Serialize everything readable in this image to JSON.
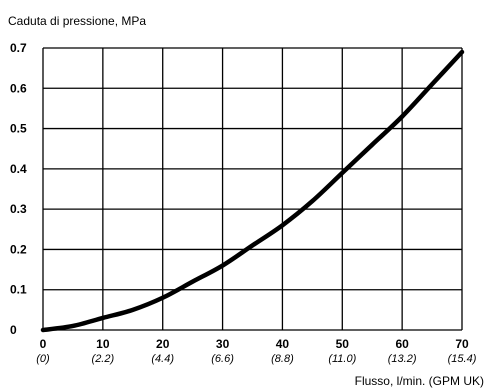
{
  "chart_data": {
    "type": "line",
    "ylabel": "Caduta di pressione, MPa",
    "xlabel": "Flusso, l/min. (GPM UK)",
    "xlim": [
      0,
      70
    ],
    "ylim": [
      0,
      0.7
    ],
    "grid": true,
    "x_ticks": [
      {
        "value": 0,
        "label": "0",
        "sub": "(0)"
      },
      {
        "value": 10,
        "label": "10",
        "sub": "(2.2)"
      },
      {
        "value": 20,
        "label": "20",
        "sub": "(4.4)"
      },
      {
        "value": 30,
        "label": "30",
        "sub": "(6.6)"
      },
      {
        "value": 40,
        "label": "40",
        "sub": "(8.8)"
      },
      {
        "value": 50,
        "label": "50",
        "sub": "(11.0)"
      },
      {
        "value": 60,
        "label": "60",
        "sub": "(13.2)"
      },
      {
        "value": 70,
        "label": "70",
        "sub": "(15.4)"
      }
    ],
    "y_ticks": [
      {
        "value": 0,
        "label": "0"
      },
      {
        "value": 0.1,
        "label": "0.1"
      },
      {
        "value": 0.2,
        "label": "0.2"
      },
      {
        "value": 0.3,
        "label": "0.3"
      },
      {
        "value": 0.4,
        "label": "0.4"
      },
      {
        "value": 0.5,
        "label": "0.5"
      },
      {
        "value": 0.6,
        "label": "0.6"
      },
      {
        "value": 0.7,
        "label": "0.7"
      }
    ],
    "series": [
      {
        "color": "#000000",
        "x": [
          0,
          5,
          10,
          15,
          20,
          25,
          30,
          35,
          40,
          45,
          50,
          55,
          60,
          65,
          70
        ],
        "y": [
          0,
          0.01,
          0.03,
          0.05,
          0.08,
          0.12,
          0.16,
          0.21,
          0.26,
          0.32,
          0.39,
          0.46,
          0.53,
          0.61,
          0.69
        ]
      }
    ]
  }
}
